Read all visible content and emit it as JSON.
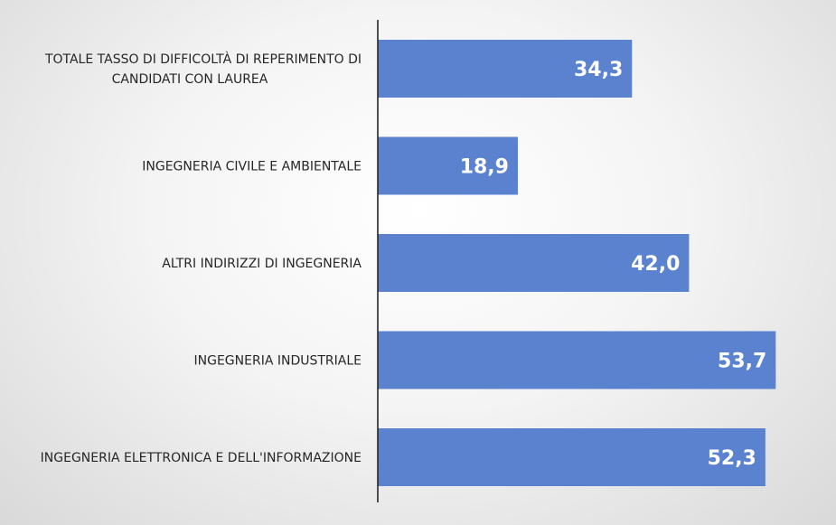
{
  "chart_data": {
    "type": "bar",
    "orientation": "horizontal",
    "categories": [
      "TOTALE TASSO DI DIFFICOLTÀ DI REPERIMENTO DI CANDIDATI CON LAUREA",
      "INGEGNERIA CIVILE E AMBIENTALE",
      "ALTRI INDIRIZZI DI INGEGNERIA",
      "INGEGNERIA INDUSTRIALE",
      "INGEGNERIA ELETTRONICA E DELL'INFORMAZIONE"
    ],
    "category_lines": [
      [
        "TOTALE TASSO DI DIFFICOLTÀ DI REPERIMENTO DI",
        "CANDIDATI CON LAUREA"
      ],
      [
        "INGEGNERIA CIVILE E AMBIENTALE"
      ],
      [
        "ALTRI INDIRIZZI DI INGEGNERIA"
      ],
      [
        "INGEGNERIA INDUSTRIALE"
      ],
      [
        "INGEGNERIA ELETTRONICA E DELL'INFORMAZIONE"
      ]
    ],
    "values": [
      34.3,
      18.9,
      42.0,
      53.7,
      52.3
    ],
    "data_labels": [
      "34,3",
      "18,9",
      "42,0",
      "53,7",
      "52,3"
    ],
    "xlim": [
      0,
      60
    ],
    "grid": false,
    "legend": "none",
    "bar_color": "#5b82cf",
    "title": "",
    "xlabel": "",
    "ylabel": ""
  }
}
